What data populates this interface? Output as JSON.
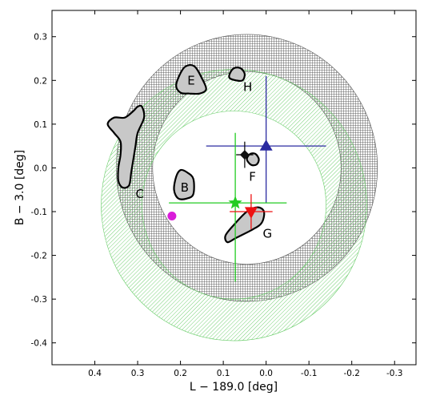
{
  "chart_data": {
    "type": "scatter",
    "xlabel": "L − 189.0 [deg]",
    "ylabel": "B − 3.0 [deg]",
    "xlim": [
      0.5,
      -0.35
    ],
    "ylim": [
      -0.45,
      0.36
    ],
    "x_ticks": [
      0.4,
      0.3,
      0.2,
      0.1,
      0.0,
      -0.1,
      -0.2,
      -0.3
    ],
    "x_tick_labels": [
      "0.4",
      "0.3",
      "0.2",
      "0.1",
      "0.0",
      "-0.1",
      "-0.2",
      "-0.3"
    ],
    "y_ticks": [
      0.3,
      0.2,
      0.1,
      0.0,
      -0.1,
      -0.2,
      -0.3,
      -0.4
    ],
    "y_tick_labels": [
      "0.3",
      "0.2",
      "0.1",
      "0.0",
      "-0.1",
      "-0.2",
      "-0.3",
      "-0.4"
    ],
    "grid": false,
    "annuli": [
      {
        "kind": "black-crosshatch",
        "center": [
          0.045,
          0.0
        ],
        "r_inner": 0.22,
        "r_outer": 0.305,
        "color": "#555555"
      },
      {
        "kind": "green-hatch",
        "center": [
          0.075,
          -0.085
        ],
        "r_inner": 0.215,
        "r_outer": 0.31,
        "color": "#66cc66"
      }
    ],
    "regions": [
      {
        "label": "B",
        "label_pos": [
          0.19,
          -0.045
        ],
        "color": "#c8c8c8",
        "outline": [
          [
            0.215,
            -0.05
          ],
          [
            0.21,
            -0.02
          ],
          [
            0.2,
            -0.005
          ],
          [
            0.185,
            -0.01
          ],
          [
            0.17,
            -0.025
          ],
          [
            0.17,
            -0.06
          ],
          [
            0.185,
            -0.07
          ],
          [
            0.205,
            -0.07
          ]
        ]
      },
      {
        "label": "C",
        "label_pos": [
          0.295,
          -0.06
        ],
        "color": "#c8c8c8",
        "outline": [
          [
            0.37,
            0.1
          ],
          [
            0.355,
            0.115
          ],
          [
            0.33,
            0.115
          ],
          [
            0.31,
            0.13
          ],
          [
            0.3,
            0.14
          ],
          [
            0.29,
            0.14
          ],
          [
            0.285,
            0.115
          ],
          [
            0.3,
            0.08
          ],
          [
            0.305,
            0.05
          ],
          [
            0.31,
            0.02
          ],
          [
            0.315,
            -0.01
          ],
          [
            0.32,
            -0.04
          ],
          [
            0.335,
            -0.045
          ],
          [
            0.345,
            -0.03
          ],
          [
            0.345,
            0.0
          ],
          [
            0.34,
            0.03
          ],
          [
            0.34,
            0.06
          ],
          [
            0.355,
            0.08
          ]
        ]
      },
      {
        "label": "E",
        "label_pos": [
          0.175,
          0.2
        ],
        "color": "#c8c8c8",
        "outline": [
          [
            0.21,
            0.19
          ],
          [
            0.195,
            0.225
          ],
          [
            0.18,
            0.235
          ],
          [
            0.165,
            0.23
          ],
          [
            0.15,
            0.205
          ],
          [
            0.14,
            0.18
          ],
          [
            0.155,
            0.17
          ],
          [
            0.18,
            0.17
          ],
          [
            0.2,
            0.172
          ]
        ]
      },
      {
        "label": "H",
        "label_pos": [
          0.043,
          0.185
        ],
        "color": "#c8c8c8",
        "outline": [
          [
            0.085,
            0.215
          ],
          [
            0.075,
            0.228
          ],
          [
            0.06,
            0.228
          ],
          [
            0.05,
            0.215
          ],
          [
            0.055,
            0.2
          ],
          [
            0.07,
            0.2
          ],
          [
            0.085,
            0.205
          ]
        ]
      },
      {
        "label": "F",
        "label_pos": [
          0.032,
          -0.02
        ],
        "color": "#c8c8c8",
        "outline": [
          [
            0.045,
            0.02
          ],
          [
            0.037,
            0.032
          ],
          [
            0.025,
            0.032
          ],
          [
            0.017,
            0.02
          ],
          [
            0.022,
            0.008
          ],
          [
            0.035,
            0.007
          ]
        ]
      },
      {
        "label": "G",
        "label_pos": [
          -0.003,
          -0.15
        ],
        "color": "#c8c8c8",
        "outline": [
          [
            0.09,
            -0.17
          ],
          [
            0.07,
            -0.16
          ],
          [
            0.03,
            -0.14
          ],
          [
            0.01,
            -0.125
          ],
          [
            0.005,
            -0.1
          ],
          [
            0.02,
            -0.09
          ],
          [
            0.045,
            -0.1
          ],
          [
            0.075,
            -0.13
          ],
          [
            0.095,
            -0.155
          ]
        ]
      }
    ],
    "markers": [
      {
        "symbol": "triangle-up",
        "x": 0.0,
        "y": 0.05,
        "color": "#2b2ba0",
        "xerr": [
          0.14,
          0.14
        ],
        "yerr": [
          0.13,
          0.16
        ]
      },
      {
        "symbol": "diamond",
        "x": 0.05,
        "y": 0.03,
        "color": "#111111",
        "xerr": [
          0.02,
          0.02
        ],
        "yerr": [
          0.03,
          0.03
        ]
      },
      {
        "symbol": "star",
        "x": 0.072,
        "y": -0.08,
        "color": "#22cc22",
        "xerr": [
          0.155,
          0.12
        ],
        "yerr": [
          0.18,
          0.16
        ]
      },
      {
        "symbol": "triangle-down",
        "x": 0.035,
        "y": -0.1,
        "color": "#ee1111",
        "xerr": [
          0.05,
          0.05
        ],
        "yerr": [
          0.04,
          0.04
        ]
      },
      {
        "symbol": "circle",
        "x": 0.22,
        "y": -0.11,
        "color": "#d91cd9"
      }
    ]
  }
}
